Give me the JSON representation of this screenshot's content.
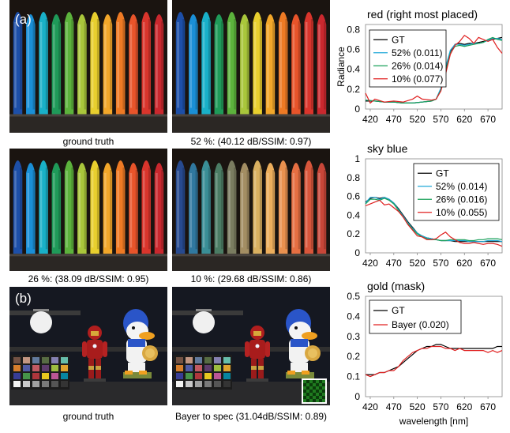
{
  "labels": {
    "a": "(a)",
    "b": "(b)"
  },
  "captions": {
    "c1": "ground truth",
    "c2": "52 %: (40.12 dB/SSIM: 0.97)",
    "c3": "26 %: (38.09 dB/SSIM: 0.95)",
    "c4": "10 %: (29.68 dB/SSIM: 0.86)",
    "c5": "ground truth",
    "c6": "Bayer to spec (31.04dB/SSIM: 0.89)"
  },
  "colors": {
    "GT": "#000000",
    "52%": "#1fa8d8",
    "26%": "#1aa05a",
    "10%": "#e02020",
    "Bayer": "#e02020",
    "crayons_full": [
      "#1d4fa8",
      "#1a8fd6",
      "#19b0c8",
      "#1f9a59",
      "#5cb23c",
      "#a9c63b",
      "#e8cf2e",
      "#f2a72a",
      "#ee7a24",
      "#e8542a",
      "#d9352c",
      "#c9282e"
    ],
    "crayons_low": [
      "#274a8f",
      "#30789f",
      "#3a8e96",
      "#4b7c64",
      "#7a7c60",
      "#a38e63",
      "#d9b060",
      "#ecae5c",
      "#e9914f",
      "#e66f42",
      "#d8563b",
      "#c74638"
    ],
    "checker": [
      "#735244",
      "#c29682",
      "#627a9d",
      "#576c43",
      "#8580b1",
      "#67bdaa",
      "#d67e2c",
      "#505ba6",
      "#c15a63",
      "#5e3c6c",
      "#9dbc40",
      "#e0a32e",
      "#383d96",
      "#469449",
      "#af363c",
      "#e7c71f",
      "#bb5695",
      "#0885a1",
      "#f3f3f2",
      "#c8c8c8",
      "#a0a0a0",
      "#7a7a7a",
      "#555555",
      "#343434"
    ]
  },
  "chart_data": [
    {
      "type": "line",
      "title": "red (right most placed)",
      "ylabel": "Radiance",
      "xlabel": "",
      "x_ticks": [
        420,
        470,
        520,
        570,
        620,
        670
      ],
      "y_ticks": [
        0,
        0.2,
        0.4,
        0.6,
        0.8
      ],
      "xlim": [
        410,
        700
      ],
      "ylim": [
        0,
        0.85
      ],
      "legend_position": "center-left",
      "series": [
        {
          "name": "GT",
          "color_key": "GT",
          "x": [
            410,
            430,
            450,
            470,
            490,
            510,
            530,
            550,
            560,
            570,
            580,
            590,
            600,
            610,
            620,
            630,
            640,
            650,
            660,
            670,
            680,
            690,
            700
          ],
          "y": [
            0.08,
            0.08,
            0.07,
            0.07,
            0.06,
            0.06,
            0.07,
            0.08,
            0.1,
            0.2,
            0.4,
            0.58,
            0.65,
            0.66,
            0.65,
            0.66,
            0.66,
            0.67,
            0.68,
            0.69,
            0.7,
            0.71,
            0.72
          ]
        },
        {
          "name": "52% (0.011)",
          "color_key": "52%",
          "x": [
            410,
            430,
            450,
            470,
            490,
            510,
            530,
            550,
            560,
            570,
            580,
            590,
            600,
            610,
            620,
            630,
            640,
            650,
            660,
            670,
            680,
            690,
            700
          ],
          "y": [
            0.09,
            0.08,
            0.07,
            0.07,
            0.06,
            0.06,
            0.07,
            0.08,
            0.1,
            0.21,
            0.42,
            0.59,
            0.65,
            0.65,
            0.64,
            0.65,
            0.66,
            0.66,
            0.67,
            0.69,
            0.71,
            0.71,
            0.7
          ]
        },
        {
          "name": "26% (0.014)",
          "color_key": "26%",
          "x": [
            410,
            430,
            450,
            470,
            490,
            510,
            530,
            550,
            560,
            570,
            580,
            590,
            600,
            610,
            620,
            630,
            640,
            650,
            660,
            670,
            680,
            690,
            700
          ],
          "y": [
            0.09,
            0.08,
            0.07,
            0.07,
            0.06,
            0.06,
            0.07,
            0.08,
            0.1,
            0.19,
            0.38,
            0.56,
            0.63,
            0.64,
            0.63,
            0.64,
            0.65,
            0.66,
            0.67,
            0.7,
            0.72,
            0.7,
            0.69
          ]
        },
        {
          "name": "10% (0.077)",
          "color_key": "10%",
          "x": [
            410,
            420,
            430,
            450,
            470,
            490,
            510,
            520,
            530,
            550,
            560,
            570,
            580,
            590,
            600,
            610,
            620,
            630,
            640,
            650,
            660,
            670,
            680,
            690,
            700
          ],
          "y": [
            0.16,
            0.06,
            0.1,
            0.07,
            0.08,
            0.07,
            0.1,
            0.13,
            0.1,
            0.09,
            0.1,
            0.18,
            0.35,
            0.55,
            0.64,
            0.68,
            0.74,
            0.71,
            0.66,
            0.72,
            0.7,
            0.68,
            0.7,
            0.62,
            0.56
          ]
        }
      ]
    },
    {
      "type": "line",
      "title": "sky blue",
      "ylabel": "",
      "xlabel": "",
      "x_ticks": [
        420,
        470,
        520,
        570,
        620,
        670
      ],
      "y_ticks": [
        0,
        0.2,
        0.4,
        0.6,
        0.8,
        1
      ],
      "xlim": [
        410,
        700
      ],
      "ylim": [
        0,
        1.0
      ],
      "legend_position": "top-right",
      "series": [
        {
          "name": "GT",
          "color_key": "GT",
          "x": [
            410,
            420,
            430,
            440,
            450,
            460,
            470,
            480,
            490,
            500,
            510,
            520,
            530,
            540,
            550,
            560,
            570,
            580,
            590,
            600,
            610,
            620,
            630,
            640,
            650,
            660,
            670,
            680,
            690,
            700
          ],
          "y": [
            0.54,
            0.58,
            0.59,
            0.58,
            0.59,
            0.57,
            0.53,
            0.47,
            0.4,
            0.33,
            0.27,
            0.21,
            0.18,
            0.16,
            0.15,
            0.14,
            0.13,
            0.13,
            0.13,
            0.12,
            0.12,
            0.12,
            0.12,
            0.12,
            0.12,
            0.12,
            0.12,
            0.12,
            0.12,
            0.12
          ]
        },
        {
          "name": "52% (0.014)",
          "color_key": "52%",
          "x": [
            410,
            420,
            430,
            440,
            450,
            460,
            470,
            480,
            490,
            500,
            510,
            520,
            530,
            540,
            550,
            560,
            570,
            580,
            590,
            600,
            610,
            620,
            630,
            640,
            650,
            660,
            670,
            680,
            690,
            700
          ],
          "y": [
            0.53,
            0.59,
            0.59,
            0.57,
            0.59,
            0.57,
            0.53,
            0.46,
            0.39,
            0.32,
            0.26,
            0.21,
            0.18,
            0.16,
            0.15,
            0.14,
            0.13,
            0.13,
            0.13,
            0.13,
            0.13,
            0.13,
            0.12,
            0.12,
            0.12,
            0.12,
            0.13,
            0.13,
            0.13,
            0.12
          ]
        },
        {
          "name": "26% (0.016)",
          "color_key": "26%",
          "x": [
            410,
            420,
            430,
            440,
            450,
            460,
            470,
            480,
            490,
            500,
            510,
            520,
            530,
            540,
            550,
            560,
            570,
            580,
            590,
            600,
            610,
            620,
            630,
            640,
            650,
            660,
            670,
            680,
            690,
            700
          ],
          "y": [
            0.52,
            0.57,
            0.57,
            0.56,
            0.58,
            0.56,
            0.52,
            0.45,
            0.38,
            0.31,
            0.25,
            0.2,
            0.17,
            0.15,
            0.14,
            0.14,
            0.13,
            0.13,
            0.14,
            0.14,
            0.14,
            0.14,
            0.13,
            0.13,
            0.14,
            0.14,
            0.15,
            0.15,
            0.15,
            0.14
          ]
        },
        {
          "name": "10% (0.055)",
          "color_key": "10%",
          "x": [
            410,
            420,
            430,
            440,
            450,
            460,
            470,
            480,
            490,
            500,
            510,
            520,
            530,
            540,
            550,
            560,
            570,
            580,
            590,
            600,
            610,
            620,
            630,
            640,
            650,
            660,
            670,
            680,
            690,
            700
          ],
          "y": [
            0.5,
            0.52,
            0.54,
            0.56,
            0.51,
            0.52,
            0.48,
            0.44,
            0.38,
            0.3,
            0.24,
            0.18,
            0.17,
            0.14,
            0.14,
            0.15,
            0.19,
            0.22,
            0.17,
            0.14,
            0.11,
            0.1,
            0.1,
            0.11,
            0.1,
            0.09,
            0.1,
            0.1,
            0.09,
            0.07
          ]
        }
      ]
    },
    {
      "type": "line",
      "title": "gold (mask)",
      "ylabel": "",
      "xlabel": "wavelength [nm]",
      "x_ticks": [
        420,
        470,
        520,
        570,
        620,
        670
      ],
      "y_ticks": [
        0,
        0.1,
        0.2,
        0.3,
        0.4,
        0.5
      ],
      "xlim": [
        410,
        700
      ],
      "ylim": [
        0,
        0.5
      ],
      "legend_position": "top-left",
      "series": [
        {
          "name": "GT",
          "color_key": "GT",
          "x": [
            410,
            420,
            430,
            440,
            450,
            460,
            470,
            480,
            490,
            500,
            510,
            520,
            530,
            540,
            550,
            560,
            570,
            580,
            590,
            600,
            610,
            620,
            630,
            640,
            650,
            660,
            670,
            680,
            690,
            700
          ],
          "y": [
            0.11,
            0.11,
            0.11,
            0.12,
            0.12,
            0.13,
            0.14,
            0.15,
            0.17,
            0.19,
            0.21,
            0.23,
            0.24,
            0.25,
            0.25,
            0.26,
            0.26,
            0.25,
            0.24,
            0.24,
            0.24,
            0.24,
            0.24,
            0.24,
            0.24,
            0.24,
            0.24,
            0.24,
            0.25,
            0.25
          ]
        },
        {
          "name": "Bayer (0.020)",
          "color_key": "Bayer",
          "x": [
            410,
            420,
            430,
            440,
            450,
            460,
            470,
            480,
            490,
            500,
            510,
            520,
            530,
            540,
            550,
            560,
            570,
            580,
            590,
            600,
            610,
            620,
            630,
            640,
            650,
            660,
            670,
            680,
            690,
            700
          ],
          "y": [
            0.11,
            0.1,
            0.11,
            0.12,
            0.12,
            0.13,
            0.13,
            0.15,
            0.18,
            0.2,
            0.22,
            0.23,
            0.24,
            0.24,
            0.25,
            0.25,
            0.25,
            0.24,
            0.24,
            0.23,
            0.24,
            0.23,
            0.23,
            0.23,
            0.23,
            0.23,
            0.22,
            0.23,
            0.22,
            0.23
          ]
        }
      ]
    }
  ]
}
